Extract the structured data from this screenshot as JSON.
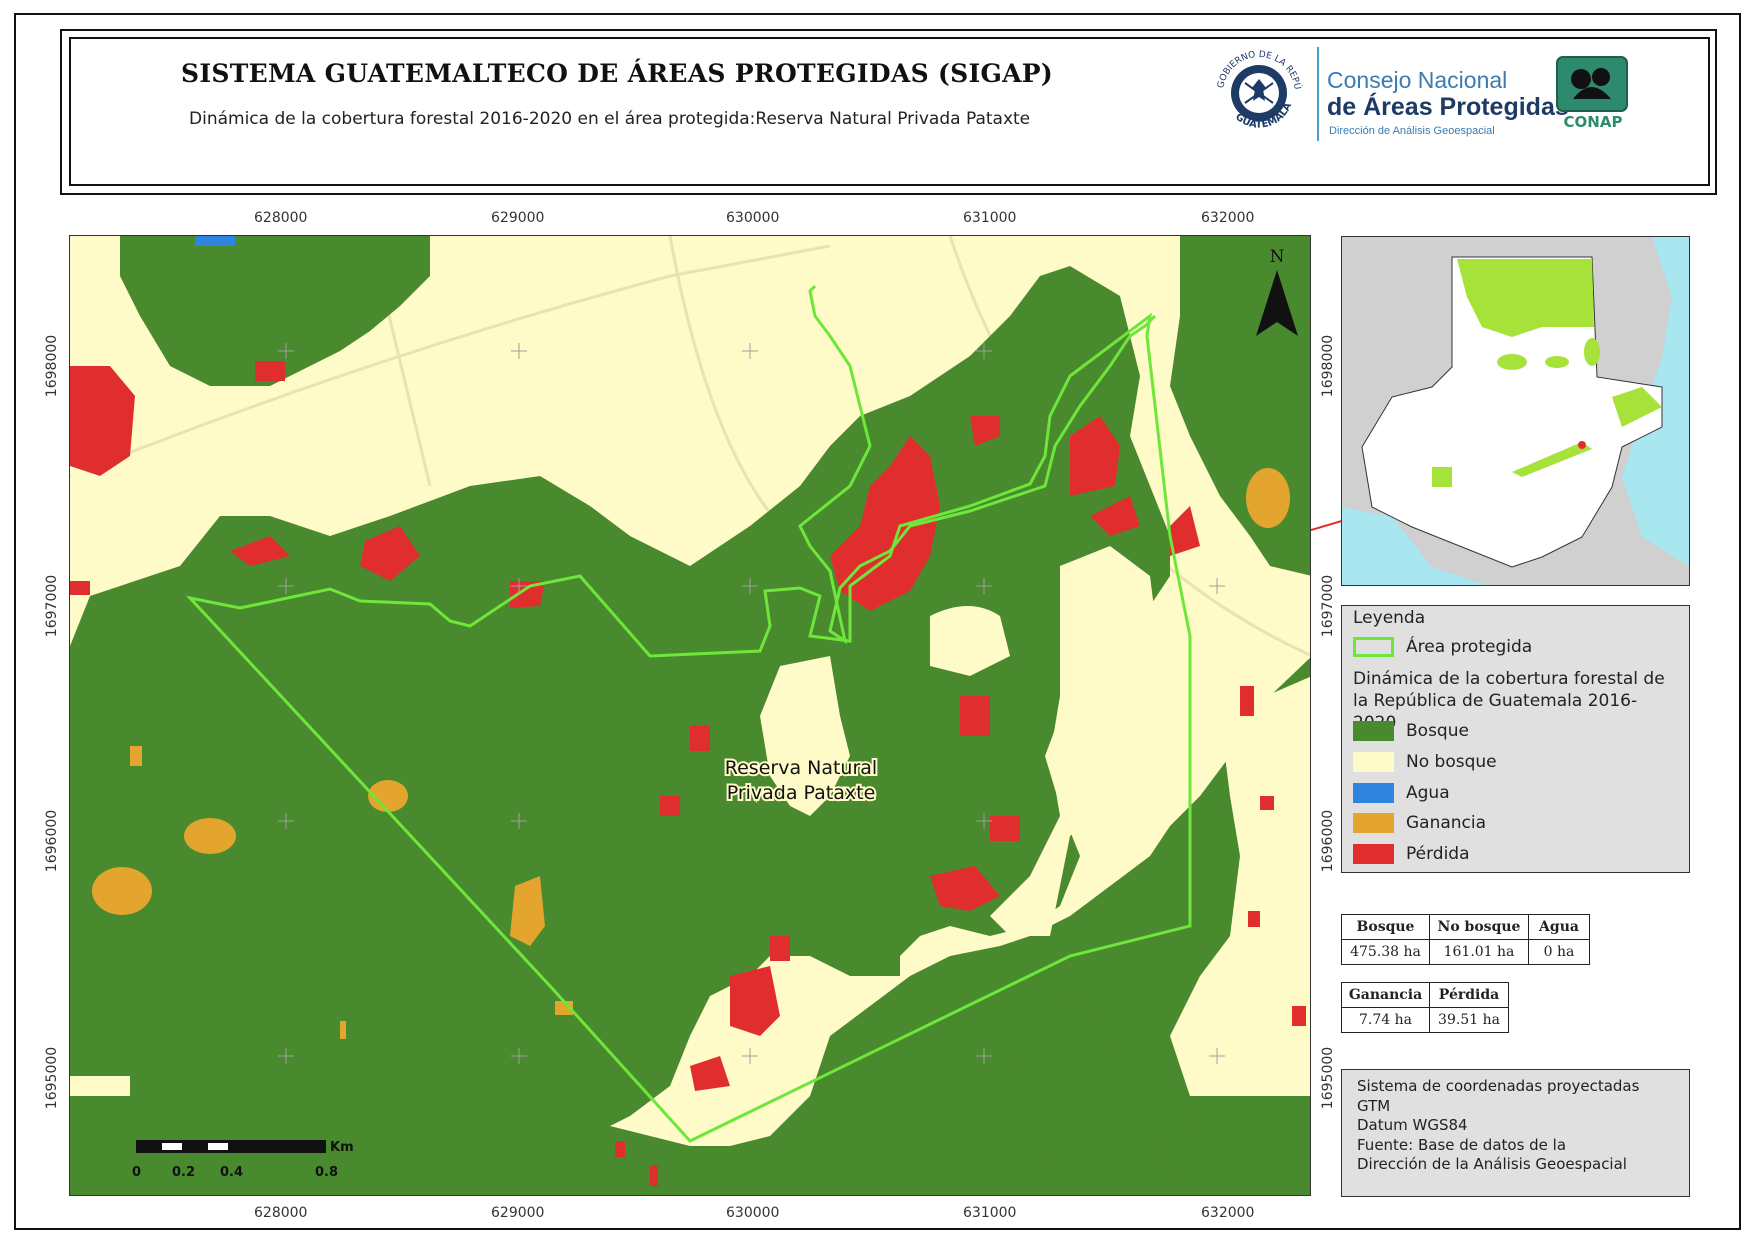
{
  "header": {
    "title": "SISTEMA GUATEMALTECO DE ÁREAS PROTEGIDAS  (SIGAP)",
    "subtitle": "Dinámica de la cobertura forestal 2016-2020 en el área protegida:Reserva Natural Privada Pataxte",
    "seal_text_top": "GOBIERNO DE LA REPÚBLICA",
    "seal_text_bottom": "GUATEMALA",
    "conap_line1": "Consejo Nacional",
    "conap_line2": "de Áreas Protegidas",
    "conap_line3": "Dirección de Análisis Geoespacial",
    "conap_logo_text": "CONAP"
  },
  "map": {
    "area_label_line1": "Reserva Natural",
    "area_label_line2": "Privada Pataxte",
    "north_label": "N",
    "x_ticks": [
      "628000",
      "629000",
      "630000",
      "631000",
      "632000"
    ],
    "y_ticks": [
      "1698000",
      "1697000",
      "1696000",
      "1695000"
    ],
    "scale": {
      "unit": "Km",
      "labels": [
        "0",
        "0.2",
        "0.4",
        "0.8"
      ]
    }
  },
  "legend": {
    "title": "Leyenda",
    "area_item": "Área protegida",
    "heading": "Dinámica de la cobertura forestal de la República de Guatemala 2016-2020",
    "items": [
      {
        "label": "Bosque",
        "color": "#4a8a2e"
      },
      {
        "label": "No bosque",
        "color": "#fefbc9"
      },
      {
        "label": "Agua",
        "color": "#2f84e0"
      },
      {
        "label": "Ganancia",
        "color": "#e3a52e"
      },
      {
        "label": "Pérdida",
        "color": "#e02e2e"
      }
    ],
    "area_color": "#6ee63a"
  },
  "stats": {
    "table1": {
      "headers": [
        "Bosque",
        "No bosque",
        "Agua"
      ],
      "values": [
        "475.38 ha",
        "161.01 ha",
        "0 ha"
      ]
    },
    "table2": {
      "headers": [
        "Ganancia",
        "Pérdida"
      ],
      "values": [
        "7.74 ha",
        "39.51 ha"
      ]
    }
  },
  "notes": {
    "lines": [
      "Sistema de coordenadas proyectadas",
      "GTM",
      "Datum WGS84",
      "Fuente: Base de datos de la",
      "Dirección de la Análisis Geoespacial"
    ]
  }
}
